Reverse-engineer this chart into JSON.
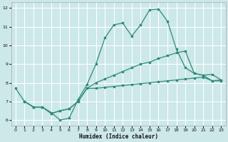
{
  "xlabel": "Humidex (Indice chaleur)",
  "bg_color": "#cce8e8",
  "grid_color": "#ffffff",
  "line_color": "#2d8b7a",
  "xlim": [
    -0.5,
    23.5
  ],
  "ylim": [
    5.7,
    12.3
  ],
  "xticks": [
    0,
    1,
    2,
    3,
    4,
    5,
    6,
    7,
    8,
    9,
    10,
    11,
    12,
    13,
    14,
    15,
    16,
    17,
    18,
    19,
    20,
    21,
    22,
    23
  ],
  "yticks": [
    6,
    7,
    8,
    9,
    10,
    11,
    12
  ],
  "line1_x": [
    0,
    1,
    2,
    3,
    4,
    5,
    6,
    7,
    8,
    9,
    10,
    11,
    12,
    13,
    14,
    15,
    16,
    17,
    18,
    19,
    20,
    21,
    22,
    23
  ],
  "line1_y": [
    7.7,
    7.0,
    6.7,
    6.7,
    6.4,
    6.0,
    6.1,
    7.1,
    7.9,
    9.0,
    10.4,
    11.1,
    11.2,
    10.5,
    11.1,
    11.9,
    11.95,
    11.3,
    9.8,
    8.8,
    8.5,
    8.4,
    8.1,
    8.1
  ],
  "line2_x": [
    1,
    2,
    3,
    4,
    5,
    6,
    7,
    8,
    9,
    10,
    11,
    12,
    13,
    14,
    15,
    16,
    17,
    18,
    19,
    20,
    21,
    22,
    23
  ],
  "line2_y": [
    7.0,
    6.7,
    6.7,
    6.35,
    6.5,
    6.6,
    7.0,
    7.7,
    8.0,
    8.2,
    8.4,
    8.6,
    8.8,
    9.0,
    9.1,
    9.3,
    9.45,
    9.6,
    9.7,
    8.5,
    8.4,
    8.45,
    8.15
  ],
  "line3_x": [
    1,
    2,
    3,
    4,
    5,
    6,
    7,
    8,
    9,
    10,
    11,
    12,
    13,
    14,
    15,
    16,
    17,
    18,
    19,
    20,
    21,
    22,
    23
  ],
  "line3_y": [
    7.0,
    6.7,
    6.7,
    6.35,
    6.5,
    6.6,
    7.0,
    7.7,
    7.7,
    7.75,
    7.8,
    7.85,
    7.9,
    7.95,
    8.0,
    8.05,
    8.1,
    8.15,
    8.2,
    8.25,
    8.3,
    8.1,
    8.15
  ]
}
